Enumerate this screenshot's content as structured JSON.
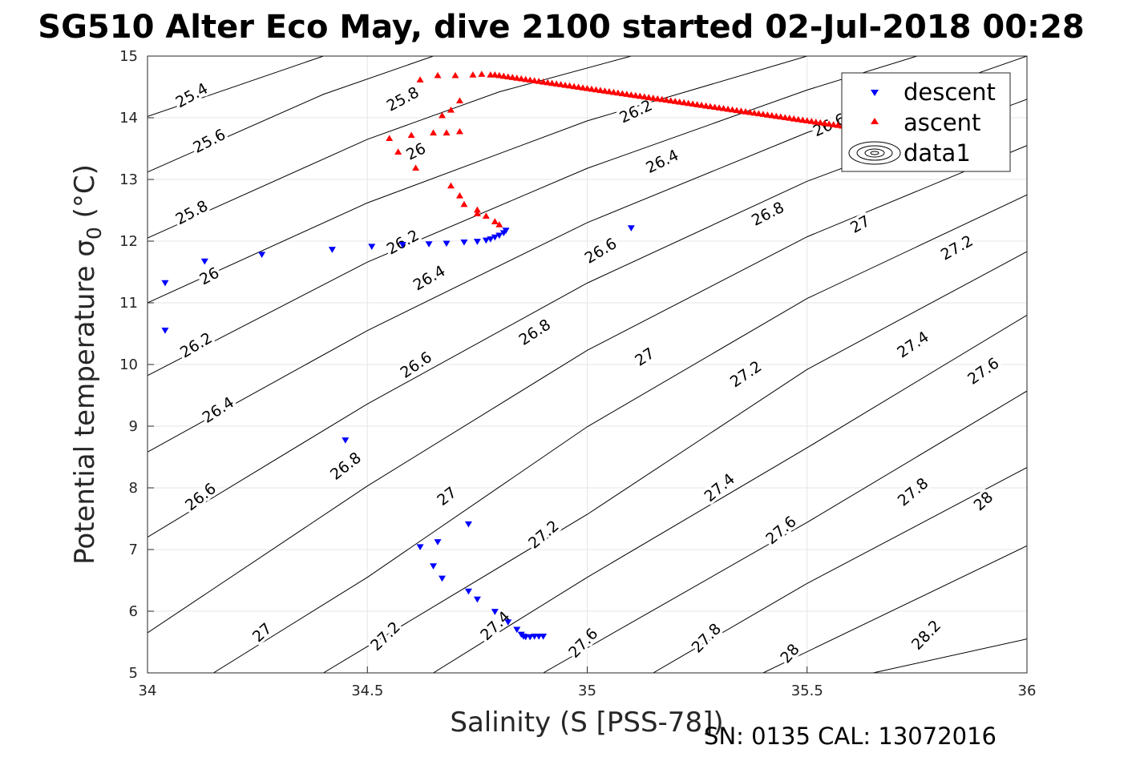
{
  "chart_data": {
    "type": "scatter",
    "title": "SG510 Alter Eco May, dive 2100 started 02-Jul-2018 00:28",
    "xlabel": "Salinity (S [PSS-78])",
    "ylabel_text": "Potential temperature σ",
    "ylabel_sub": "0",
    "ylabel_unit": " (°C)",
    "footer": "SN: 0135  CAL: 13072016",
    "xlim": [
      34,
      36
    ],
    "ylim": [
      5,
      15
    ],
    "x_ticks": [
      "34",
      "34.5",
      "35",
      "35.5",
      "36"
    ],
    "y_ticks": [
      "5",
      "6",
      "7",
      "8",
      "9",
      "10",
      "11",
      "12",
      "13",
      "14",
      "15"
    ],
    "grid": true,
    "legend_position": "top-right",
    "legend": [
      "descent",
      "ascent",
      "data1"
    ],
    "series": [
      {
        "name": "descent",
        "color": "#0000ff",
        "marker": "triangle-down",
        "points": [
          [
            34.04,
            10.55
          ],
          [
            34.04,
            11.32
          ],
          [
            34.13,
            11.67
          ],
          [
            34.26,
            11.78
          ],
          [
            34.42,
            11.86
          ],
          [
            34.51,
            11.91
          ],
          [
            34.58,
            11.94
          ],
          [
            34.64,
            11.95
          ],
          [
            34.68,
            11.96
          ],
          [
            34.72,
            11.98
          ],
          [
            34.75,
            11.99
          ],
          [
            34.77,
            12.01
          ],
          [
            34.78,
            12.03
          ],
          [
            34.79,
            12.06
          ],
          [
            34.8,
            12.09
          ],
          [
            34.81,
            12.13
          ],
          [
            34.815,
            12.17
          ],
          [
            35.1,
            12.21
          ],
          [
            34.45,
            8.77
          ],
          [
            34.62,
            7.04
          ],
          [
            34.65,
            6.73
          ],
          [
            34.66,
            7.12
          ],
          [
            34.67,
            6.53
          ],
          [
            34.73,
            7.41
          ],
          [
            34.73,
            6.32
          ],
          [
            34.75,
            6.19
          ],
          [
            34.79,
            5.99
          ],
          [
            34.82,
            5.82
          ],
          [
            34.84,
            5.7
          ],
          [
            34.85,
            5.62
          ],
          [
            34.855,
            5.59
          ],
          [
            34.86,
            5.58
          ],
          [
            34.87,
            5.58
          ],
          [
            34.88,
            5.59
          ],
          [
            34.89,
            5.59
          ],
          [
            34.9,
            5.59
          ]
        ]
      },
      {
        "name": "ascent",
        "color": "#ff0000",
        "marker": "triangle-up",
        "points": [
          [
            34.55,
            13.67
          ],
          [
            34.57,
            13.45
          ],
          [
            34.6,
            13.72
          ],
          [
            34.61,
            13.19
          ],
          [
            34.62,
            14.62
          ],
          [
            34.65,
            13.76
          ],
          [
            34.66,
            14.69
          ],
          [
            34.67,
            14.04
          ],
          [
            34.68,
            13.76
          ],
          [
            34.69,
            14.13
          ],
          [
            34.7,
            14.69
          ],
          [
            34.71,
            13.78
          ],
          [
            34.71,
            14.28
          ],
          [
            34.69,
            12.9
          ],
          [
            34.71,
            12.74
          ],
          [
            34.72,
            12.6
          ],
          [
            34.75,
            12.51
          ],
          [
            34.75,
            12.45
          ],
          [
            34.77,
            12.41
          ],
          [
            34.79,
            12.32
          ],
          [
            34.8,
            12.27
          ],
          [
            34.74,
            14.7
          ],
          [
            34.76,
            14.71
          ],
          [
            34.78,
            14.7
          ]
        ],
        "track": {
          "x_start": 34.79,
          "x_end": 35.62,
          "y_start": 14.7,
          "y_end": 13.83,
          "count": 84
        }
      }
    ],
    "contours": {
      "label_color": "#000000",
      "levels": [
        25.4,
        25.6,
        25.8,
        26,
        26.2,
        26.4,
        26.6,
        26.8,
        27,
        27.2,
        27.4,
        27.6,
        27.8,
        28,
        28.2
      ],
      "lines": [
        {
          "level": 25.4,
          "points": [
            [
              34.0,
              14.02
            ],
            [
              34.4,
              15.0
            ]
          ]
        },
        {
          "level": 25.6,
          "points": [
            [
              34.0,
              13.12
            ],
            [
              34.4,
              14.38
            ],
            [
              34.65,
              15.0
            ]
          ]
        },
        {
          "level": 25.8,
          "points": [
            [
              34.0,
              12.05
            ],
            [
              34.5,
              13.65
            ],
            [
              34.8,
              14.42
            ],
            [
              35.1,
              15.0
            ]
          ]
        },
        {
          "level": 26,
          "points": [
            [
              34.0,
              11.0
            ],
            [
              34.5,
              12.62
            ],
            [
              35.0,
              13.95
            ],
            [
              35.5,
              15.0
            ]
          ]
        },
        {
          "level": 26.2,
          "points": [
            [
              34.0,
              9.82
            ],
            [
              34.5,
              11.66
            ],
            [
              35.0,
              13.18
            ],
            [
              35.5,
              14.45
            ],
            [
              35.75,
              15.0
            ]
          ]
        },
        {
          "level": 26.4,
          "points": [
            [
              34.0,
              8.58
            ],
            [
              34.5,
              10.55
            ],
            [
              35.0,
              12.3
            ],
            [
              35.5,
              13.76
            ],
            [
              36.0,
              15.0
            ]
          ]
        },
        {
          "level": 26.6,
          "points": [
            [
              34.0,
              7.2
            ],
            [
              34.5,
              9.36
            ],
            [
              35.0,
              11.32
            ],
            [
              35.5,
              12.97
            ],
            [
              36.0,
              14.3
            ]
          ]
        },
        {
          "level": 26.8,
          "points": [
            [
              34.0,
              5.65
            ],
            [
              34.5,
              8.03
            ],
            [
              35.0,
              10.23
            ],
            [
              35.5,
              12.07
            ],
            [
              36.0,
              13.55
            ]
          ]
        },
        {
          "level": 27,
          "points": [
            [
              34.15,
              5.0
            ],
            [
              34.5,
              6.55
            ],
            [
              35.0,
              8.99
            ],
            [
              35.5,
              11.07
            ],
            [
              36.0,
              12.75
            ]
          ]
        },
        {
          "level": 27.2,
          "points": [
            [
              34.4,
              5.0
            ],
            [
              35.0,
              7.57
            ],
            [
              35.5,
              9.92
            ],
            [
              36.0,
              11.83
            ]
          ]
        },
        {
          "level": 27.4,
          "points": [
            [
              34.65,
              5.0
            ],
            [
              35.0,
              6.55
            ],
            [
              35.5,
              8.65
            ],
            [
              36.0,
              10.8
            ]
          ]
        },
        {
          "level": 27.6,
          "points": [
            [
              34.9,
              5.0
            ],
            [
              35.5,
              7.44
            ],
            [
              36.0,
              9.57
            ]
          ]
        },
        {
          "level": 27.8,
          "points": [
            [
              35.15,
              5.0
            ],
            [
              35.5,
              6.45
            ],
            [
              36.0,
              8.33
            ]
          ]
        },
        {
          "level": 28,
          "points": [
            [
              35.4,
              5.0
            ],
            [
              36.0,
              7.06
            ]
          ]
        },
        {
          "level": 28.2,
          "points": [
            [
              35.65,
              5.0
            ],
            [
              36.0,
              5.55
            ]
          ]
        }
      ],
      "labels": [
        {
          "text": "25.4",
          "at": [
            34.1,
            14.37
          ],
          "angle": -29
        },
        {
          "text": "25.6",
          "at": [
            34.14,
            13.63
          ],
          "angle": -27
        },
        {
          "text": "25.8",
          "at": [
            34.1,
            12.47
          ],
          "angle": -28
        },
        {
          "text": "25.8",
          "at": [
            34.58,
            14.31
          ],
          "angle": -28
        },
        {
          "text": "26",
          "at": [
            34.14,
            11.44
          ],
          "angle": -28
        },
        {
          "text": "26",
          "at": [
            34.61,
            13.46
          ],
          "angle": -26
        },
        {
          "text": "26.2",
          "at": [
            34.11,
            10.32
          ],
          "angle": -31
        },
        {
          "text": "26.2",
          "at": [
            34.58,
            11.99
          ],
          "angle": -29
        },
        {
          "text": "26.2",
          "at": [
            35.11,
            14.11
          ],
          "angle": -25
        },
        {
          "text": "26.4",
          "at": [
            34.16,
            9.27
          ],
          "angle": -33
        },
        {
          "text": "26.4",
          "at": [
            34.64,
            11.41
          ],
          "angle": -30
        },
        {
          "text": "26.4",
          "at": [
            35.17,
            13.3
          ],
          "angle": -26
        },
        {
          "text": "26.6",
          "at": [
            34.12,
            7.86
          ],
          "angle": -38
        },
        {
          "text": "26.6",
          "at": [
            34.61,
            10.0
          ],
          "angle": -34
        },
        {
          "text": "26.6",
          "at": [
            35.03,
            11.85
          ],
          "angle": -31
        },
        {
          "text": "26.6",
          "at": [
            35.55,
            13.89
          ],
          "angle": -25
        },
        {
          "text": "26.8",
          "at": [
            34.45,
            8.36
          ],
          "angle": -38
        },
        {
          "text": "26.8",
          "at": [
            34.88,
            10.53
          ],
          "angle": -33
        },
        {
          "text": "26.8",
          "at": [
            35.41,
            12.45
          ],
          "angle": -27
        },
        {
          "text": "27",
          "at": [
            34.26,
            5.66
          ],
          "angle": -42
        },
        {
          "text": "27",
          "at": [
            34.68,
            7.87
          ],
          "angle": -38
        },
        {
          "text": "27",
          "at": [
            35.13,
            10.13
          ],
          "angle": -33
        },
        {
          "text": "27",
          "at": [
            35.62,
            12.28
          ],
          "angle": -29
        },
        {
          "text": "27.2",
          "at": [
            34.54,
            5.6
          ],
          "angle": -44
        },
        {
          "text": "27.2",
          "at": [
            34.9,
            7.25
          ],
          "angle": -40
        },
        {
          "text": "27.2",
          "at": [
            35.36,
            9.85
          ],
          "angle": -34
        },
        {
          "text": "27.2",
          "at": [
            35.84,
            11.9
          ],
          "angle": -29
        },
        {
          "text": "27.4",
          "at": [
            34.79,
            5.77
          ],
          "angle": -44
        },
        {
          "text": "27.4",
          "at": [
            35.3,
            8.01
          ],
          "angle": -40
        },
        {
          "text": "27.4",
          "at": [
            35.74,
            10.33
          ],
          "angle": -34
        },
        {
          "text": "27.6",
          "at": [
            34.99,
            5.49
          ],
          "angle": -46
        },
        {
          "text": "27.6",
          "at": [
            35.44,
            7.32
          ],
          "angle": -40
        },
        {
          "text": "27.6",
          "at": [
            35.9,
            9.9
          ],
          "angle": -35
        },
        {
          "text": "27.8",
          "at": [
            35.27,
            5.57
          ],
          "angle": -45
        },
        {
          "text": "27.8",
          "at": [
            35.74,
            7.94
          ],
          "angle": -40
        },
        {
          "text": "28",
          "at": [
            35.46,
            5.32
          ],
          "angle": -48
        },
        {
          "text": "28",
          "at": [
            35.9,
            7.79
          ],
          "angle": -42
        },
        {
          "text": "28.2",
          "at": [
            35.77,
            5.62
          ],
          "angle": -46
        }
      ]
    }
  }
}
